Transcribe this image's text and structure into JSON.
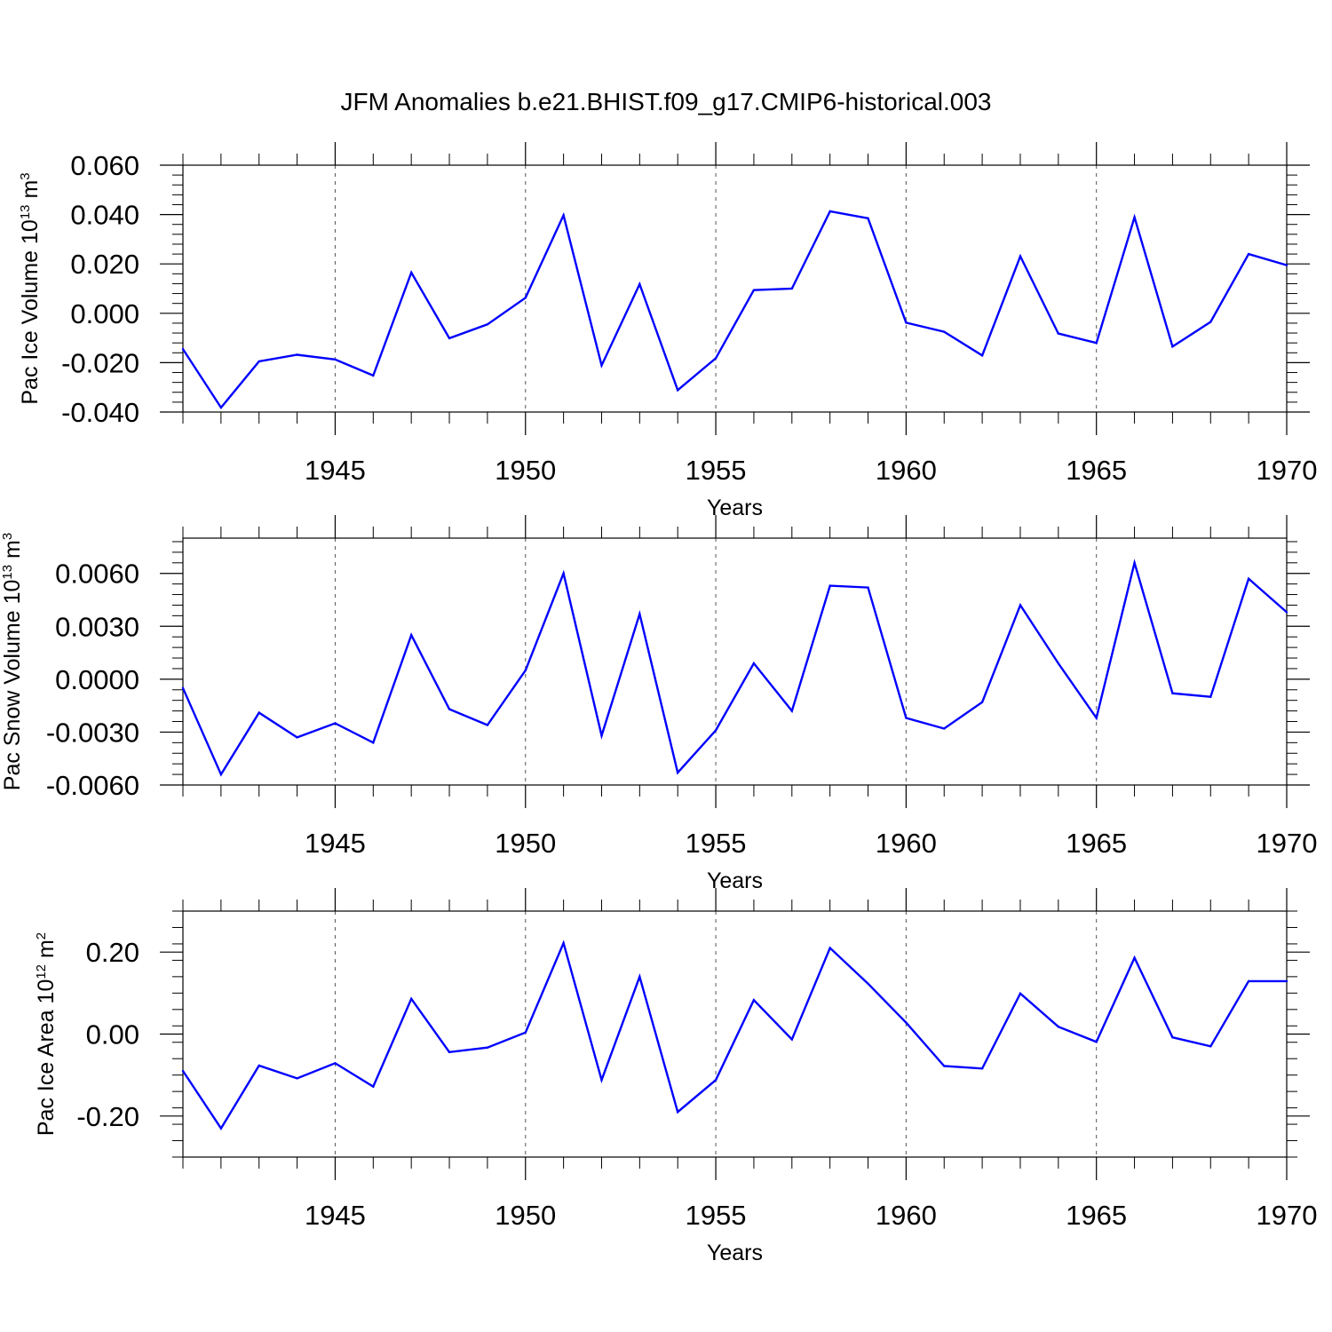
{
  "chart_data": {
    "title": "JFM Anomalies b.e21.BHIST.f09_g17.CMIP6-historical.003",
    "panels": [
      {
        "type": "line",
        "ylabel": "Pac Ice Volume 10",
        "ylabel_exp": "13",
        "ylabel_unit": " m",
        "ylabel_unit_exp": "3",
        "xlabel": "Years",
        "xlim": [
          1941,
          1970
        ],
        "ylim": [
          -0.04,
          0.06
        ],
        "yticks": [
          -0.04,
          -0.02,
          0.0,
          0.02,
          0.04,
          0.06
        ],
        "ytick_labels": [
          "-0.040",
          "-0.020",
          "0.000",
          "0.020",
          "0.040",
          "0.060"
        ],
        "xticks": [
          1945,
          1950,
          1955,
          1960,
          1965,
          1970
        ],
        "xtick_labels": [
          "1945",
          "1950",
          "1955",
          "1960",
          "1965",
          "1970"
        ],
        "grid": "vertical dashed at major x ticks",
        "color": "#0000ff",
        "x": [
          1941,
          1942,
          1943,
          1944,
          1945,
          1946,
          1947,
          1948,
          1949,
          1950,
          1951,
          1952,
          1953,
          1954,
          1955,
          1956,
          1957,
          1958,
          1959,
          1960,
          1961,
          1962,
          1963,
          1964,
          1965,
          1966,
          1967,
          1968,
          1969,
          1970
        ],
        "values": [
          -0.0145,
          -0.0382,
          -0.0195,
          -0.0168,
          -0.0187,
          -0.0252,
          0.0165,
          -0.0101,
          -0.0045,
          0.0063,
          0.0397,
          -0.0211,
          0.0118,
          -0.0311,
          -0.0182,
          0.0094,
          0.01,
          0.0413,
          0.0385,
          -0.0038,
          -0.0075,
          -0.0171,
          0.0231,
          -0.0082,
          -0.012,
          0.0389,
          -0.0135,
          -0.0035,
          0.024,
          0.0195
        ]
      },
      {
        "type": "line",
        "ylabel": "Pac Snow Volume 10",
        "ylabel_exp": "13",
        "ylabel_unit": " m",
        "ylabel_unit_exp": "3",
        "xlabel": "Years",
        "xlim": [
          1941,
          1970
        ],
        "ylim": [
          -0.006,
          0.008
        ],
        "yticks": [
          -0.006,
          -0.003,
          0.0,
          0.003,
          0.006
        ],
        "ytick_labels": [
          "-0.0060",
          "-0.0030",
          "0.0000",
          "0.0030",
          "0.0060"
        ],
        "xticks": [
          1945,
          1950,
          1955,
          1960,
          1965,
          1970
        ],
        "xtick_labels": [
          "1945",
          "1950",
          "1955",
          "1960",
          "1965",
          "1970"
        ],
        "grid": "vertical dashed at major x ticks",
        "color": "#0000ff",
        "x": [
          1941,
          1942,
          1943,
          1944,
          1945,
          1946,
          1947,
          1948,
          1949,
          1950,
          1951,
          1952,
          1953,
          1954,
          1955,
          1956,
          1957,
          1958,
          1959,
          1960,
          1961,
          1962,
          1963,
          1964,
          1965,
          1966,
          1967,
          1968,
          1969,
          1970
        ],
        "values": [
          -0.0005,
          -0.0054,
          -0.0019,
          -0.0033,
          -0.0025,
          -0.0036,
          0.0025,
          -0.0017,
          -0.0026,
          0.0005,
          0.006,
          -0.0032,
          0.0037,
          -0.0053,
          -0.0029,
          0.0009,
          -0.0018,
          0.0053,
          0.0052,
          -0.0022,
          -0.0028,
          -0.0013,
          0.0042,
          0.0009,
          -0.0022,
          0.0066,
          -0.0008,
          -0.001,
          0.0057,
          0.0038
        ]
      },
      {
        "type": "line",
        "ylabel": "Pac Ice Area 10",
        "ylabel_exp": "12",
        "ylabel_unit": " m",
        "ylabel_unit_exp": "2",
        "xlabel": "Years",
        "xlim": [
          1941,
          1970
        ],
        "ylim": [
          -0.3,
          0.3
        ],
        "yticks": [
          -0.2,
          0.0,
          0.2
        ],
        "ytick_labels": [
          "-0.20",
          "0.00",
          "0.20"
        ],
        "xticks": [
          1945,
          1950,
          1955,
          1960,
          1965,
          1970
        ],
        "xtick_labels": [
          "1945",
          "1950",
          "1955",
          "1960",
          "1965",
          "1970"
        ],
        "grid": "vertical dashed at major x ticks",
        "color": "#0000ff",
        "x": [
          1941,
          1942,
          1943,
          1944,
          1945,
          1946,
          1947,
          1948,
          1949,
          1950,
          1951,
          1952,
          1953,
          1954,
          1955,
          1956,
          1957,
          1958,
          1959,
          1960,
          1961,
          1962,
          1963,
          1964,
          1965,
          1966,
          1967,
          1968,
          1969,
          1970
        ],
        "values": [
          -0.09,
          -0.23,
          -0.077,
          -0.108,
          -0.071,
          -0.128,
          0.086,
          -0.044,
          -0.033,
          0.004,
          0.222,
          -0.112,
          0.14,
          -0.19,
          -0.112,
          0.083,
          -0.013,
          0.21,
          0.123,
          0.028,
          -0.078,
          -0.084,
          0.099,
          0.018,
          -0.019,
          0.186,
          -0.008,
          -0.03,
          0.129,
          0.129
        ]
      }
    ]
  }
}
